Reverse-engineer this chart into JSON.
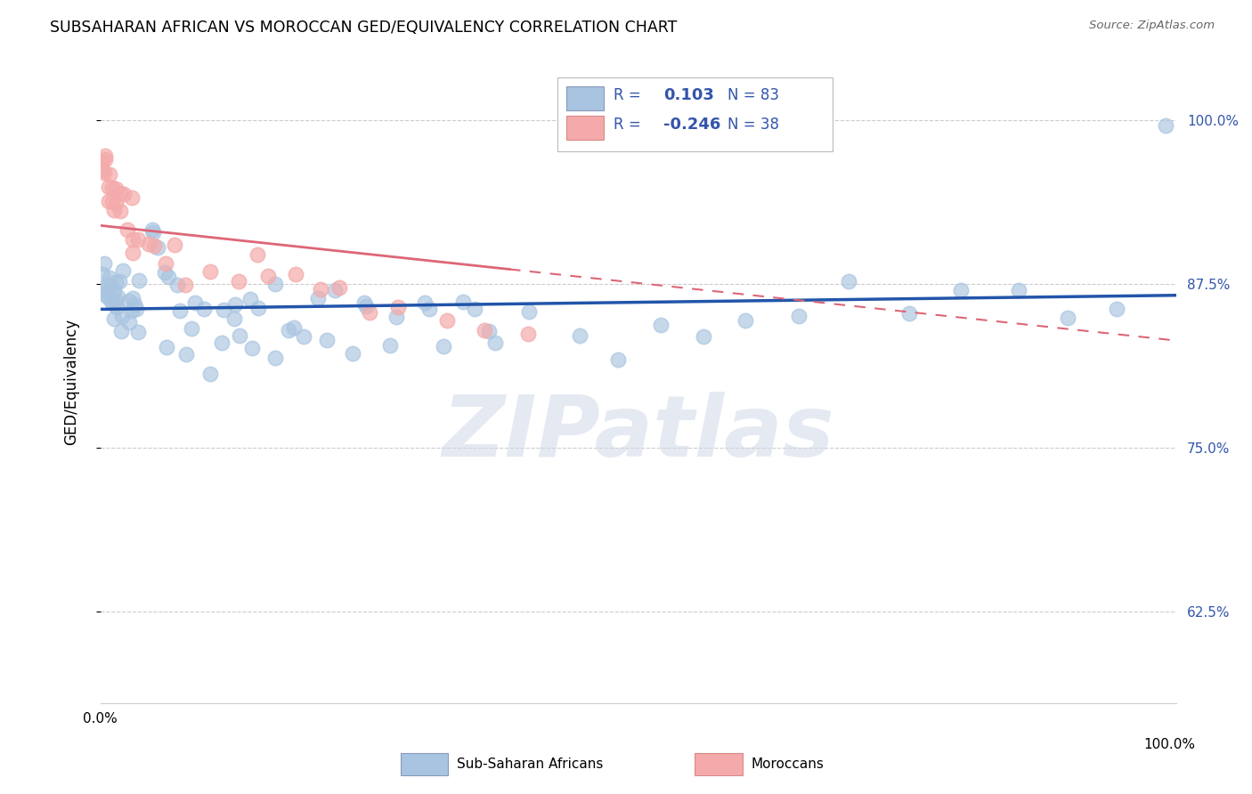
{
  "title": "SUBSAHARAN AFRICAN VS MOROCCAN GED/EQUIVALENCY CORRELATION CHART",
  "source": "Source: ZipAtlas.com",
  "ylabel": "GED/Equivalency",
  "ytick_labels": [
    "62.5%",
    "75.0%",
    "87.5%",
    "100.0%"
  ],
  "ytick_values": [
    0.625,
    0.75,
    0.875,
    1.0
  ],
  "legend_label1": "Sub-Saharan Africans",
  "legend_label2": "Moroccans",
  "R1": 0.103,
  "N1": 83,
  "R2": -0.246,
  "N2": 38,
  "blue_color": "#A8C4E0",
  "pink_color": "#F4AAAA",
  "blue_line_color": "#2255AA",
  "pink_line_color": "#DD6677",
  "watermark": "ZIPatlas",
  "xlim": [
    0.0,
    1.0
  ],
  "ylim": [
    0.555,
    1.045
  ],
  "blue_x": [
    0.002,
    0.003,
    0.004,
    0.005,
    0.006,
    0.007,
    0.008,
    0.009,
    0.01,
    0.011,
    0.012,
    0.013,
    0.014,
    0.015,
    0.016,
    0.017,
    0.018,
    0.019,
    0.02,
    0.022,
    0.024,
    0.026,
    0.028,
    0.03,
    0.032,
    0.034,
    0.036,
    0.04,
    0.045,
    0.05,
    0.055,
    0.06,
    0.065,
    0.07,
    0.08,
    0.09,
    0.1,
    0.11,
    0.12,
    0.14,
    0.16,
    0.18,
    0.2,
    0.22,
    0.25,
    0.28,
    0.3,
    0.33,
    0.36,
    0.4,
    0.44,
    0.48,
    0.52,
    0.56,
    0.6,
    0.65,
    0.7,
    0.75,
    0.8,
    0.85,
    0.9,
    0.95,
    0.99,
    0.3,
    0.32,
    0.35,
    0.37,
    0.25,
    0.27,
    0.15,
    0.17,
    0.19,
    0.21,
    0.23,
    0.12,
    0.13,
    0.14,
    0.16,
    0.08,
    0.09,
    0.1,
    0.11,
    0.06
  ],
  "blue_y": [
    0.876,
    0.884,
    0.872,
    0.868,
    0.88,
    0.862,
    0.874,
    0.866,
    0.858,
    0.87,
    0.862,
    0.854,
    0.866,
    0.858,
    0.85,
    0.862,
    0.854,
    0.846,
    0.882,
    0.874,
    0.866,
    0.858,
    0.85,
    0.866,
    0.858,
    0.85,
    0.842,
    0.858,
    0.914,
    0.906,
    0.898,
    0.89,
    0.882,
    0.874,
    0.858,
    0.866,
    0.842,
    0.858,
    0.866,
    0.858,
    0.874,
    0.842,
    0.858,
    0.866,
    0.858,
    0.842,
    0.858,
    0.866,
    0.842,
    0.858,
    0.834,
    0.826,
    0.858,
    0.834,
    0.858,
    0.866,
    0.874,
    0.858,
    0.866,
    0.874,
    0.858,
    0.866,
    1.0,
    0.858,
    0.834,
    0.858,
    0.842,
    0.858,
    0.842,
    0.858,
    0.834,
    0.826,
    0.818,
    0.834,
    0.842,
    0.826,
    0.818,
    0.826,
    0.818,
    0.826,
    0.818,
    0.826,
    0.818
  ],
  "pink_x": [
    0.002,
    0.003,
    0.004,
    0.005,
    0.006,
    0.007,
    0.008,
    0.009,
    0.01,
    0.011,
    0.012,
    0.013,
    0.015,
    0.017,
    0.019,
    0.021,
    0.024,
    0.027,
    0.03,
    0.034,
    0.038,
    0.043,
    0.05,
    0.058,
    0.068,
    0.08,
    0.1,
    0.13,
    0.16,
    0.2,
    0.15,
    0.18,
    0.22,
    0.25,
    0.28,
    0.32,
    0.36,
    0.4
  ],
  "pink_y": [
    0.97,
    0.965,
    0.96,
    0.955,
    0.975,
    0.95,
    0.945,
    0.94,
    0.955,
    0.95,
    0.945,
    0.94,
    0.935,
    0.93,
    0.945,
    0.94,
    0.915,
    0.93,
    0.9,
    0.91,
    0.915,
    0.905,
    0.9,
    0.895,
    0.905,
    0.87,
    0.885,
    0.88,
    0.875,
    0.87,
    0.895,
    0.875,
    0.865,
    0.855,
    0.86,
    0.845,
    0.84,
    0.848
  ]
}
